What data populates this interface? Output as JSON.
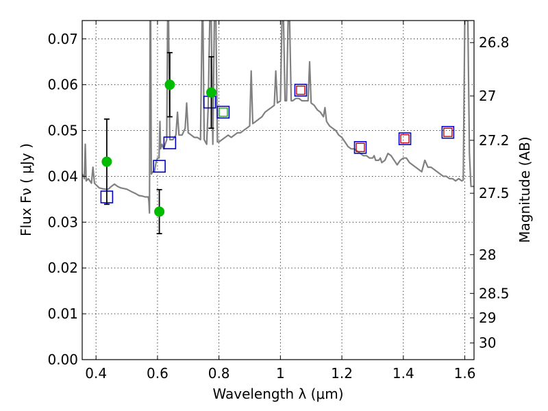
{
  "chart_data": {
    "type": "scatter",
    "xlabel": "Wavelength  λ (μm)",
    "ylabel": "Flux  Fν  ( μJy )",
    "ylabel_right": "Magnitude (AB)",
    "xlim": [
      0.355,
      1.63
    ],
    "ylim": [
      0.0,
      0.074
    ],
    "x_ticks": [
      0.4,
      0.6,
      0.8,
      1.0,
      1.2,
      1.4,
      1.6
    ],
    "x_tick_labels": [
      "0.4",
      "0.6",
      "0.8",
      "1",
      "1.2",
      "1.4",
      "1.6"
    ],
    "y_ticks": [
      0.0,
      0.01,
      0.02,
      0.03,
      0.04,
      0.05,
      0.06,
      0.07
    ],
    "y_tick_labels": [
      "0.00",
      "0.01",
      "0.02",
      "0.03",
      "0.04",
      "0.05",
      "0.06",
      "0.07"
    ],
    "right_ticks": [
      {
        "mag": 26.8,
        "label": "26.8"
      },
      {
        "mag": 27.0,
        "label": "27"
      },
      {
        "mag": 27.2,
        "label": "27.2"
      },
      {
        "mag": 27.5,
        "label": "27.5"
      },
      {
        "mag": 28.0,
        "label": "28"
      },
      {
        "mag": 28.5,
        "label": "28.5"
      },
      {
        "mag": 29.0,
        "label": "29"
      },
      {
        "mag": 30.0,
        "label": "30"
      }
    ],
    "grid": true,
    "colors": {
      "template": "#808080",
      "observed": "#00bb00",
      "model_box": "#0000cc",
      "green_box": "#00bb00",
      "red_box": "#cc0000",
      "errorbar": "#000000"
    },
    "series": [
      {
        "name": "SED template",
        "type": "line",
        "points": [
          [
            0.355,
            0.0405
          ],
          [
            0.36,
            0.04
          ],
          [
            0.362,
            0.0395
          ],
          [
            0.365,
            0.047
          ],
          [
            0.368,
            0.039
          ],
          [
            0.375,
            0.0395
          ],
          [
            0.385,
            0.0385
          ],
          [
            0.39,
            0.042
          ],
          [
            0.395,
            0.0385
          ],
          [
            0.41,
            0.0375
          ],
          [
            0.42,
            0.0373
          ],
          [
            0.43,
            0.0372
          ],
          [
            0.44,
            0.0372
          ],
          [
            0.45,
            0.0378
          ],
          [
            0.46,
            0.0383
          ],
          [
            0.47,
            0.0378
          ],
          [
            0.48,
            0.0375
          ],
          [
            0.5,
            0.0372
          ],
          [
            0.52,
            0.0365
          ],
          [
            0.53,
            0.0362
          ],
          [
            0.54,
            0.0358
          ],
          [
            0.55,
            0.0357
          ],
          [
            0.56,
            0.0355
          ],
          [
            0.57,
            0.0355
          ],
          [
            0.572,
            0.0345
          ],
          [
            0.574,
            0.032
          ],
          [
            0.576,
            0.074
          ],
          [
            0.578,
            0.074
          ],
          [
            0.58,
            0.0405
          ],
          [
            0.585,
            0.041
          ],
          [
            0.59,
            0.041
          ],
          [
            0.595,
            0.043
          ],
          [
            0.6,
            0.044
          ],
          [
            0.605,
            0.044
          ],
          [
            0.608,
            0.052
          ],
          [
            0.61,
            0.046
          ],
          [
            0.615,
            0.047
          ],
          [
            0.62,
            0.046
          ],
          [
            0.625,
            0.047
          ],
          [
            0.63,
            0.048
          ],
          [
            0.633,
            0.074
          ],
          [
            0.636,
            0.074
          ],
          [
            0.64,
            0.048
          ],
          [
            0.65,
            0.048
          ],
          [
            0.66,
            0.049
          ],
          [
            0.665,
            0.054
          ],
          [
            0.67,
            0.049
          ],
          [
            0.68,
            0.049
          ],
          [
            0.69,
            0.0505
          ],
          [
            0.695,
            0.056
          ],
          [
            0.7,
            0.0495
          ],
          [
            0.71,
            0.049
          ],
          [
            0.72,
            0.0485
          ],
          [
            0.73,
            0.0485
          ],
          [
            0.74,
            0.048
          ],
          [
            0.745,
            0.074
          ],
          [
            0.748,
            0.074
          ],
          [
            0.752,
            0.048
          ],
          [
            0.76,
            0.047
          ],
          [
            0.765,
            0.055
          ],
          [
            0.77,
            0.074
          ],
          [
            0.775,
            0.074
          ],
          [
            0.78,
            0.047
          ],
          [
            0.785,
            0.074
          ],
          [
            0.79,
            0.074
          ],
          [
            0.795,
            0.0475
          ],
          [
            0.8,
            0.0475
          ],
          [
            0.81,
            0.048
          ],
          [
            0.82,
            0.0485
          ],
          [
            0.83,
            0.049
          ],
          [
            0.84,
            0.0485
          ],
          [
            0.85,
            0.049
          ],
          [
            0.86,
            0.0495
          ],
          [
            0.87,
            0.0495
          ],
          [
            0.88,
            0.05
          ],
          [
            0.89,
            0.0505
          ],
          [
            0.9,
            0.051
          ],
          [
            0.905,
            0.063
          ],
          [
            0.91,
            0.0515
          ],
          [
            0.92,
            0.052
          ],
          [
            0.93,
            0.0525
          ],
          [
            0.94,
            0.053
          ],
          [
            0.95,
            0.054
          ],
          [
            0.96,
            0.0545
          ],
          [
            0.97,
            0.055
          ],
          [
            0.98,
            0.0555
          ],
          [
            0.985,
            0.063
          ],
          [
            0.99,
            0.056
          ],
          [
            1.0,
            0.0565
          ],
          [
            1.005,
            0.074
          ],
          [
            1.01,
            0.074
          ],
          [
            1.015,
            0.0565
          ],
          [
            1.02,
            0.0565
          ],
          [
            1.025,
            0.074
          ],
          [
            1.03,
            0.074
          ],
          [
            1.035,
            0.0565
          ],
          [
            1.04,
            0.0565
          ],
          [
            1.05,
            0.057
          ],
          [
            1.06,
            0.057
          ],
          [
            1.07,
            0.0565
          ],
          [
            1.08,
            0.0565
          ],
          [
            1.09,
            0.0565
          ],
          [
            1.095,
            0.065
          ],
          [
            1.1,
            0.056
          ],
          [
            1.11,
            0.0555
          ],
          [
            1.12,
            0.0545
          ],
          [
            1.13,
            0.054
          ],
          [
            1.14,
            0.053
          ],
          [
            1.145,
            0.055
          ],
          [
            1.15,
            0.052
          ],
          [
            1.16,
            0.051
          ],
          [
            1.17,
            0.0505
          ],
          [
            1.18,
            0.05
          ],
          [
            1.19,
            0.049
          ],
          [
            1.2,
            0.0485
          ],
          [
            1.21,
            0.0475
          ],
          [
            1.22,
            0.0465
          ],
          [
            1.23,
            0.046
          ],
          [
            1.24,
            0.046
          ],
          [
            1.25,
            0.0455
          ],
          [
            1.26,
            0.045
          ],
          [
            1.27,
            0.0445
          ],
          [
            1.28,
            0.0445
          ],
          [
            1.29,
            0.044
          ],
          [
            1.3,
            0.044
          ],
          [
            1.305,
            0.0445
          ],
          [
            1.31,
            0.0435
          ],
          [
            1.32,
            0.0435
          ],
          [
            1.325,
            0.044
          ],
          [
            1.33,
            0.043
          ],
          [
            1.34,
            0.0435
          ],
          [
            1.35,
            0.045
          ],
          [
            1.36,
            0.0445
          ],
          [
            1.37,
            0.0435
          ],
          [
            1.38,
            0.0425
          ],
          [
            1.39,
            0.0435
          ],
          [
            1.4,
            0.044
          ],
          [
            1.41,
            0.044
          ],
          [
            1.42,
            0.043
          ],
          [
            1.43,
            0.0425
          ],
          [
            1.44,
            0.042
          ],
          [
            1.45,
            0.0415
          ],
          [
            1.46,
            0.041
          ],
          [
            1.47,
            0.0435
          ],
          [
            1.48,
            0.042
          ],
          [
            1.49,
            0.042
          ],
          [
            1.5,
            0.0415
          ],
          [
            1.51,
            0.041
          ],
          [
            1.52,
            0.0405
          ],
          [
            1.53,
            0.04
          ],
          [
            1.54,
            0.04
          ],
          [
            1.55,
            0.0395
          ],
          [
            1.56,
            0.0395
          ],
          [
            1.57,
            0.039
          ],
          [
            1.58,
            0.0395
          ],
          [
            1.59,
            0.039
          ],
          [
            1.595,
            0.0392
          ],
          [
            1.6,
            0.074
          ],
          [
            1.61,
            0.074
          ],
          [
            1.615,
            0.045
          ],
          [
            1.62,
            0.0378
          ],
          [
            1.63,
            0.0378
          ]
        ]
      },
      {
        "name": "Observed photometry",
        "type": "errorbar",
        "points": [
          {
            "x": 0.435,
            "y": 0.0432,
            "yerr": 0.0093
          },
          {
            "x": 0.606,
            "y": 0.0323,
            "yerr": 0.0048
          },
          {
            "x": 0.64,
            "y": 0.06,
            "yerr": 0.007
          },
          {
            "x": 0.775,
            "y": 0.0583,
            "yerr": 0.0078
          }
        ]
      },
      {
        "name": "Model fluxes (blue)",
        "type": "scatter",
        "points": [
          {
            "x": 0.435,
            "y": 0.0355
          },
          {
            "x": 0.606,
            "y": 0.0422
          },
          {
            "x": 0.64,
            "y": 0.0473
          },
          {
            "x": 0.77,
            "y": 0.0562
          },
          {
            "x": 0.814,
            "y": 0.054
          },
          {
            "x": 1.066,
            "y": 0.0588
          },
          {
            "x": 1.26,
            "y": 0.0463
          },
          {
            "x": 1.405,
            "y": 0.0482
          },
          {
            "x": 1.545,
            "y": 0.0496
          }
        ]
      },
      {
        "name": "Inner green",
        "type": "scatter",
        "points": [
          {
            "x": 0.814,
            "y": 0.054
          }
        ]
      },
      {
        "name": "Inner red",
        "type": "scatter",
        "points": [
          {
            "x": 1.066,
            "y": 0.0588
          },
          {
            "x": 1.26,
            "y": 0.0463
          },
          {
            "x": 1.405,
            "y": 0.0482
          },
          {
            "x": 1.545,
            "y": 0.0496
          }
        ]
      }
    ]
  }
}
